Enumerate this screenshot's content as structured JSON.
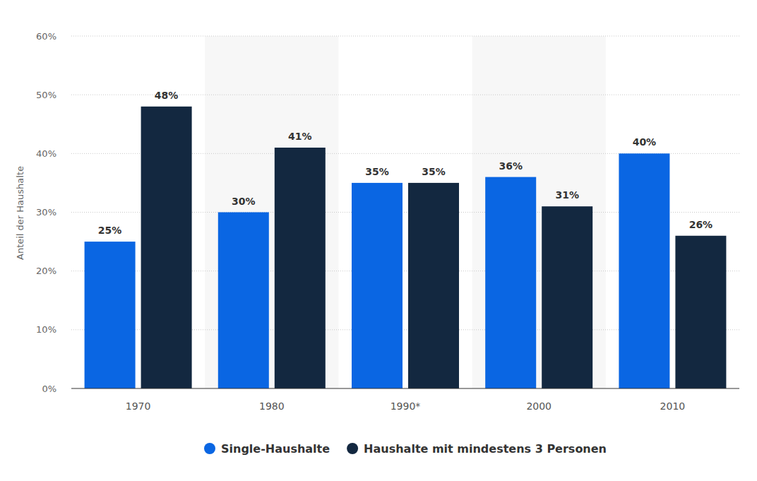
{
  "chart_data": {
    "type": "bar",
    "ylabel": "Anteil der Haushalte",
    "categories": [
      "1970",
      "1980",
      "1990*",
      "2000",
      "2010"
    ],
    "series": [
      {
        "name": "Single-Haushalte",
        "color": "#0a66e3",
        "values": [
          25,
          30,
          35,
          36,
          40
        ],
        "value_labels": [
          "25%",
          "30%",
          "35%",
          "36%",
          "40%"
        ]
      },
      {
        "name": "Haushalte mit mindestens 3 Personen",
        "color": "#132840",
        "values": [
          48,
          41,
          35,
          31,
          26
        ],
        "value_labels": [
          "48%",
          "41%",
          "35%",
          "31%",
          "26%"
        ]
      }
    ],
    "ylim": [
      0,
      60
    ],
    "yticks": [
      {
        "value": 0,
        "label": "0%"
      },
      {
        "value": 10,
        "label": "10%"
      },
      {
        "value": 20,
        "label": "20%"
      },
      {
        "value": 30,
        "label": "30%"
      },
      {
        "value": 40,
        "label": "40%"
      },
      {
        "value": 50,
        "label": "50%"
      },
      {
        "value": 60,
        "label": "60%"
      }
    ],
    "grid": true,
    "data_labels": true,
    "legend": "bottom"
  }
}
